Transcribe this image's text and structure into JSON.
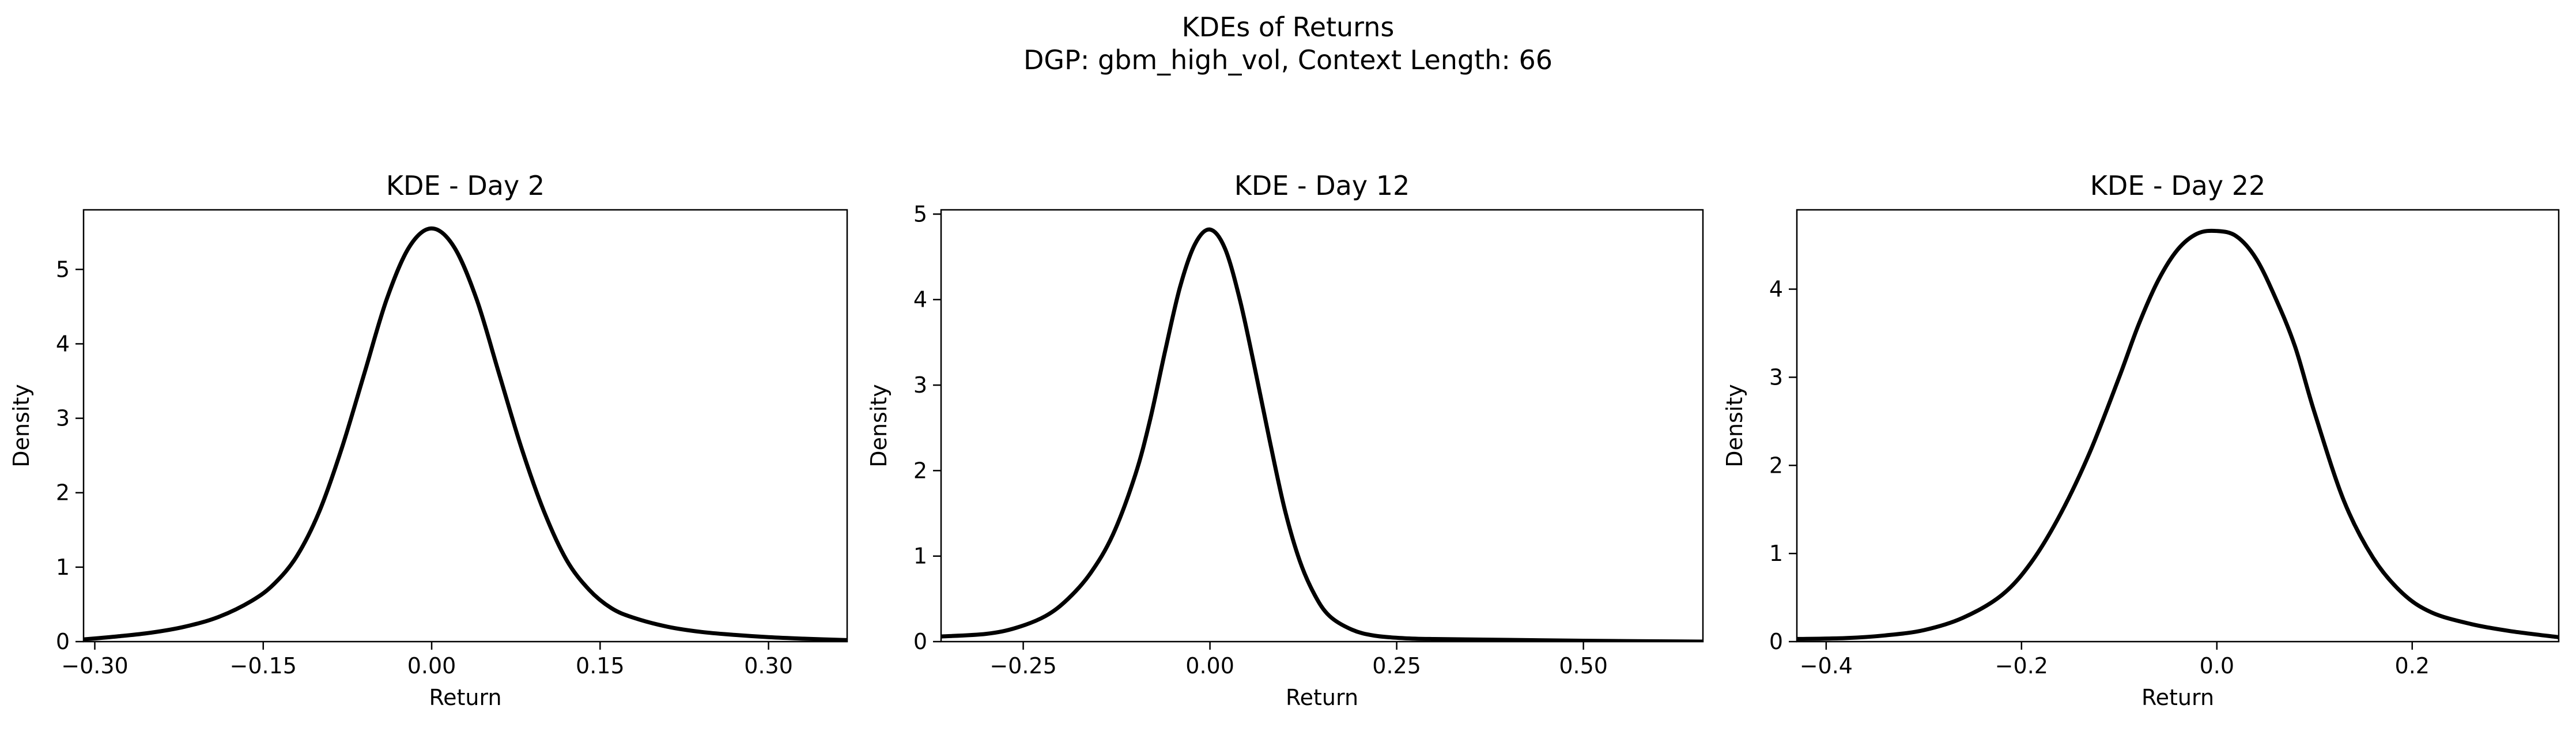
{
  "figure": {
    "title": "KDEs of Returns",
    "subtitle": "DGP: gbm_high_vol, Context Length: 66"
  },
  "chart_data": [
    {
      "type": "line",
      "title": "KDE - Day 2",
      "xlabel": "Return",
      "ylabel": "Density",
      "xlim": [
        -0.31,
        0.37
      ],
      "ylim": [
        0,
        5.8
      ],
      "xticks": [
        -0.3,
        -0.15,
        0.0,
        0.15,
        0.3
      ],
      "xtick_labels": [
        "−0.30",
        "−0.15",
        "0.00",
        "0.15",
        "0.30"
      ],
      "yticks": [
        0,
        1,
        2,
        3,
        4,
        5
      ],
      "ytick_labels": [
        "0",
        "1",
        "2",
        "3",
        "4",
        "5"
      ],
      "grid": false,
      "series": [
        {
          "color": "#000000",
          "x": [
            -0.31,
            -0.28,
            -0.25,
            -0.22,
            -0.19,
            -0.16,
            -0.14,
            -0.12,
            -0.1,
            -0.08,
            -0.06,
            -0.04,
            -0.02,
            0.0,
            0.02,
            0.04,
            0.06,
            0.08,
            0.1,
            0.12,
            0.14,
            0.16,
            0.18,
            0.21,
            0.24,
            0.27,
            0.3,
            0.33,
            0.37
          ],
          "y": [
            0.03,
            0.07,
            0.12,
            0.2,
            0.33,
            0.55,
            0.78,
            1.15,
            1.75,
            2.6,
            3.6,
            4.6,
            5.3,
            5.55,
            5.3,
            4.6,
            3.6,
            2.6,
            1.75,
            1.1,
            0.7,
            0.45,
            0.32,
            0.2,
            0.13,
            0.09,
            0.06,
            0.04,
            0.02
          ]
        }
      ]
    },
    {
      "type": "line",
      "title": "KDE - Day 12",
      "xlabel": "Return",
      "ylabel": "Density",
      "xlim": [
        -0.36,
        0.66
      ],
      "ylim": [
        0,
        5.05
      ],
      "xticks": [
        -0.25,
        0.0,
        0.25,
        0.5
      ],
      "xtick_labels": [
        "−0.25",
        "0.00",
        "0.25",
        "0.50"
      ],
      "yticks": [
        0,
        1,
        2,
        3,
        4,
        5
      ],
      "ytick_labels": [
        "0",
        "1",
        "2",
        "3",
        "4",
        "5"
      ],
      "grid": false,
      "series": [
        {
          "color": "#000000",
          "x": [
            -0.36,
            -0.3,
            -0.26,
            -0.22,
            -0.19,
            -0.16,
            -0.13,
            -0.1,
            -0.08,
            -0.06,
            -0.04,
            -0.02,
            0.0,
            0.02,
            0.04,
            0.06,
            0.08,
            0.1,
            0.12,
            0.14,
            0.16,
            0.19,
            0.22,
            0.26,
            0.3,
            0.4,
            0.5,
            0.66
          ],
          "y": [
            0.06,
            0.09,
            0.16,
            0.3,
            0.5,
            0.8,
            1.25,
            1.95,
            2.6,
            3.4,
            4.15,
            4.65,
            4.82,
            4.6,
            4.0,
            3.2,
            2.35,
            1.55,
            0.95,
            0.55,
            0.3,
            0.14,
            0.07,
            0.04,
            0.03,
            0.02,
            0.01,
            0.0
          ]
        }
      ]
    },
    {
      "type": "line",
      "title": "KDE - Day 22",
      "xlabel": "Return",
      "ylabel": "Density",
      "xlim": [
        -0.43,
        0.35
      ],
      "ylim": [
        0,
        4.9
      ],
      "xticks": [
        -0.4,
        -0.2,
        0.0,
        0.2
      ],
      "xtick_labels": [
        "−0.4",
        "−0.2",
        "0.0",
        "0.2"
      ],
      "yticks": [
        0,
        1,
        2,
        3,
        4
      ],
      "ytick_labels": [
        "0",
        "1",
        "2",
        "3",
        "4"
      ],
      "grid": false,
      "series": [
        {
          "color": "#000000",
          "x": [
            -0.43,
            -0.38,
            -0.34,
            -0.3,
            -0.26,
            -0.22,
            -0.19,
            -0.16,
            -0.13,
            -0.1,
            -0.08,
            -0.06,
            -0.04,
            -0.02,
            0.0,
            0.02,
            0.04,
            0.06,
            0.08,
            0.1,
            0.13,
            0.16,
            0.19,
            0.22,
            0.26,
            0.3,
            0.35
          ],
          "y": [
            0.03,
            0.04,
            0.07,
            0.13,
            0.27,
            0.53,
            0.9,
            1.45,
            2.15,
            3.0,
            3.6,
            4.1,
            4.45,
            4.63,
            4.66,
            4.6,
            4.35,
            3.9,
            3.35,
            2.6,
            1.6,
            0.95,
            0.55,
            0.33,
            0.2,
            0.12,
            0.05
          ]
        }
      ]
    }
  ]
}
